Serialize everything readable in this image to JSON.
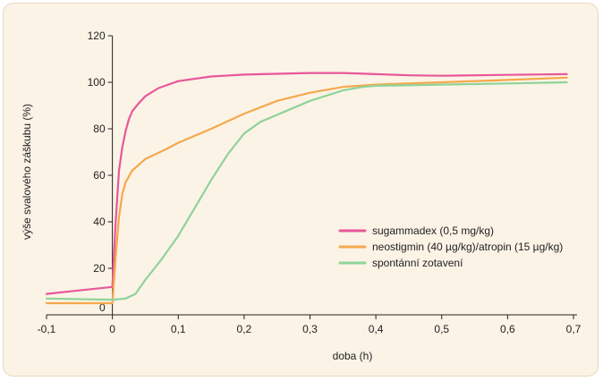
{
  "chart_data": {
    "type": "line",
    "title": "",
    "xlabel": "doba (h)",
    "ylabel": "výše svalového záškubu (%)",
    "xlim": [
      -0.1,
      0.7
    ],
    "ylim": [
      0,
      120
    ],
    "x_ticks": [
      {
        "value": -0.1,
        "label": "-0,1"
      },
      {
        "value": 0,
        "label": "0"
      },
      {
        "value": 0.1,
        "label": "0,1"
      },
      {
        "value": 0.2,
        "label": "0,2"
      },
      {
        "value": 0.3,
        "label": "0,3"
      },
      {
        "value": 0.4,
        "label": "0,4"
      },
      {
        "value": 0.5,
        "label": "0,5"
      },
      {
        "value": 0.6,
        "label": "0,6"
      },
      {
        "value": 0.7,
        "label": "0,7"
      }
    ],
    "y_ticks": [
      {
        "value": 0,
        "label": "0"
      },
      {
        "value": 20,
        "label": "20"
      },
      {
        "value": 40,
        "label": "40"
      },
      {
        "value": 60,
        "label": "60"
      },
      {
        "value": 80,
        "label": "80"
      },
      {
        "value": 100,
        "label": "100"
      },
      {
        "value": 120,
        "label": "120"
      }
    ],
    "grid": false,
    "legend": "center-right",
    "series": [
      {
        "name": "sugammadex (0,5 mg/kg)",
        "color": "#e8579a",
        "points": [
          [
            -0.1,
            9
          ],
          [
            -0.05,
            10.5
          ],
          [
            0,
            12
          ],
          [
            0.005,
            40
          ],
          [
            0.01,
            62
          ],
          [
            0.015,
            72
          ],
          [
            0.02,
            79
          ],
          [
            0.025,
            84
          ],
          [
            0.03,
            87.5
          ],
          [
            0.04,
            91
          ],
          [
            0.05,
            94
          ],
          [
            0.07,
            97.5
          ],
          [
            0.1,
            100.5
          ],
          [
            0.15,
            102.5
          ],
          [
            0.2,
            103.3
          ],
          [
            0.3,
            104
          ],
          [
            0.35,
            104
          ],
          [
            0.4,
            103.5
          ],
          [
            0.45,
            103
          ],
          [
            0.5,
            102.8
          ],
          [
            0.6,
            103.2
          ],
          [
            0.69,
            103.5
          ]
        ]
      },
      {
        "name": "neostigmin (40 µg/kg)/atropin (15 µg/kg)",
        "color": "#f5a84c",
        "points": [
          [
            -0.1,
            5
          ],
          [
            0,
            5
          ],
          [
            0.005,
            25
          ],
          [
            0.01,
            42
          ],
          [
            0.015,
            52
          ],
          [
            0.02,
            57
          ],
          [
            0.03,
            62
          ],
          [
            0.05,
            67
          ],
          [
            0.08,
            71
          ],
          [
            0.1,
            74
          ],
          [
            0.15,
            80
          ],
          [
            0.2,
            86.5
          ],
          [
            0.25,
            92
          ],
          [
            0.3,
            95.5
          ],
          [
            0.35,
            98
          ],
          [
            0.4,
            99
          ],
          [
            0.5,
            100
          ],
          [
            0.6,
            101
          ],
          [
            0.69,
            102
          ]
        ]
      },
      {
        "name": "spontánní zotavení",
        "color": "#8fd39a",
        "points": [
          [
            -0.1,
            7
          ],
          [
            0,
            6.5
          ],
          [
            0.02,
            7
          ],
          [
            0.035,
            9
          ],
          [
            0.05,
            15
          ],
          [
            0.075,
            24
          ],
          [
            0.1,
            34
          ],
          [
            0.125,
            46
          ],
          [
            0.15,
            58
          ],
          [
            0.175,
            69
          ],
          [
            0.2,
            78
          ],
          [
            0.225,
            83
          ],
          [
            0.25,
            86
          ],
          [
            0.3,
            92
          ],
          [
            0.35,
            96.5
          ],
          [
            0.38,
            98
          ],
          [
            0.4,
            98.5
          ],
          [
            0.5,
            99
          ],
          [
            0.6,
            99.5
          ],
          [
            0.69,
            100
          ]
        ]
      }
    ]
  }
}
